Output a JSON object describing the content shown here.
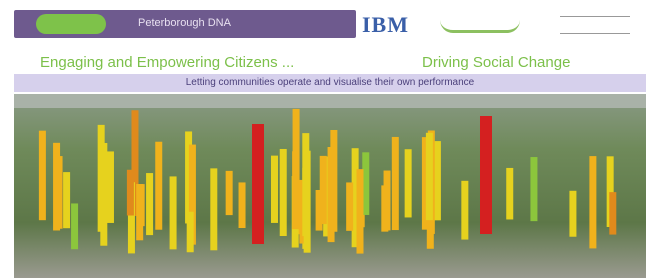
{
  "header": {
    "title": "Peterborough DNA",
    "logo": "IBM"
  },
  "tagline": {
    "left": "Engaging and Empowering Citizens ...",
    "right": "Driving Social Change"
  },
  "subtitle": "Letting communities operate and visualise their own performance"
}
